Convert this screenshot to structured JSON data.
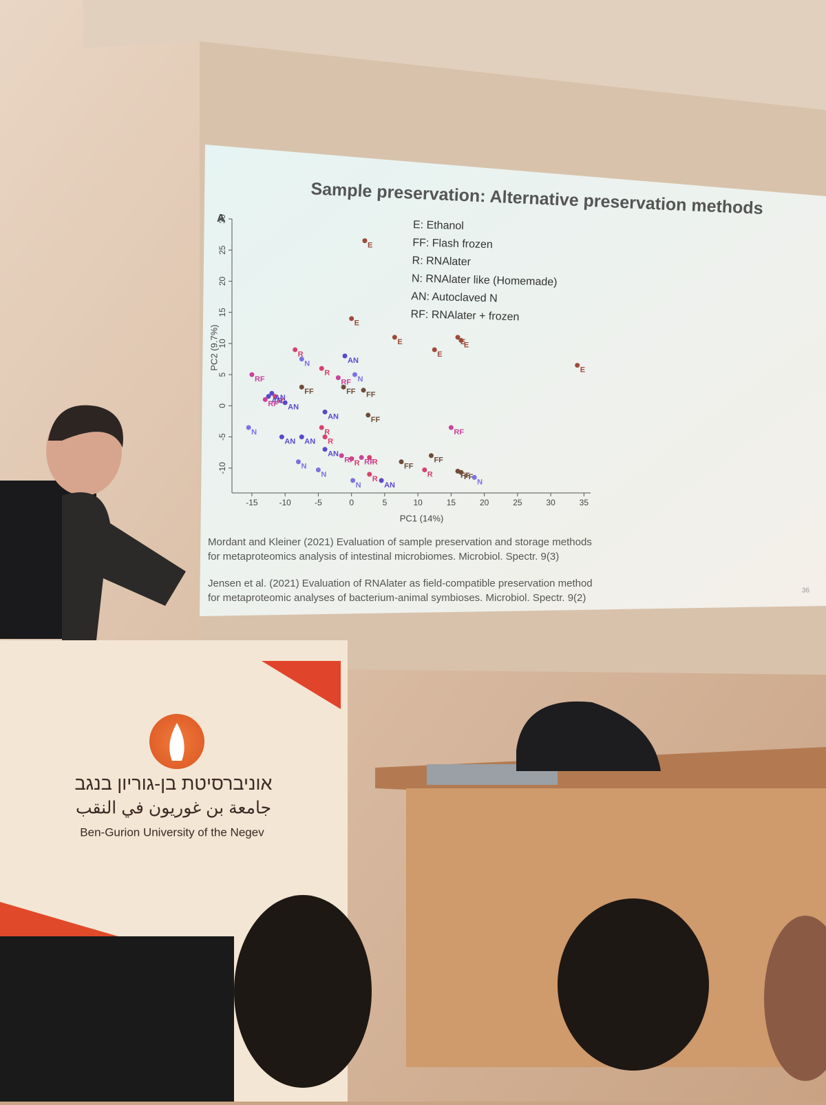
{
  "slide": {
    "title": "Sample preservation: Alternative preservation methods",
    "panel_label": "A",
    "slide_number": "36",
    "citations": [
      [
        "Mordant and Kleiner (2021) Evaluation of sample preservation and storage methods",
        "for metaproteomics analysis of intestinal microbiomes. Microbiol. Spectr. 9(3)"
      ],
      [
        "Jensen et al. (2021) Evaluation of RNAlater as field-compatible preservation method",
        "for metaproteomic analyses of bacterium-animal symbioses. Microbiol. Spectr. 9(2)"
      ]
    ]
  },
  "chart_data": {
    "type": "scatter",
    "x_label": "PC1 (14%)",
    "y_label": "PC2 (9.7%)",
    "xlim": [
      -18,
      36
    ],
    "ylim": [
      -14,
      30
    ],
    "xticks": [
      -15,
      -10,
      -5,
      0,
      5,
      10,
      15,
      20,
      25,
      30,
      35
    ],
    "yticks": [
      -10,
      -5,
      0,
      5,
      10,
      15,
      20,
      25,
      30
    ],
    "series": [
      {
        "name": "E: Ethanol",
        "marker_label": "E",
        "color": "#9c4a3c",
        "x": [
          2,
          0,
          6.5,
          12.5,
          16,
          16.5,
          34
        ],
        "values": [
          26.5,
          14,
          11,
          9,
          11,
          10.5,
          6.5
        ]
      },
      {
        "name": "FF: Flash frozen",
        "marker_label": "FF",
        "color": "#6e4c3a",
        "x": [
          -7.5,
          -1.2,
          1.8,
          2.5,
          7.5,
          12,
          16,
          16.5
        ],
        "values": [
          3,
          3,
          2.5,
          -1.5,
          -9,
          -8,
          -10.5,
          -10.7
        ]
      },
      {
        "name": "R: RNAlater",
        "marker_label": "R",
        "color": "#d8406e",
        "x": [
          -8.5,
          -4.5,
          -4.5,
          -4,
          0,
          2.7,
          2.7,
          11,
          -11.5
        ],
        "values": [
          9,
          6,
          -3.5,
          -5,
          -8.5,
          -8.3,
          -11,
          -10.3,
          1.5
        ]
      },
      {
        "name": "N: RNAlater like (Homemade)",
        "marker_label": "N",
        "color": "#7a72e0",
        "x": [
          -7.5,
          0.5,
          -8,
          -5,
          0.2,
          18.5,
          -15.5
        ],
        "values": [
          7.5,
          5,
          -9,
          -10.3,
          -12,
          -11.5,
          -3.5
        ]
      },
      {
        "name": "AN: Autoclaved N",
        "marker_label": "AN",
        "color": "#5a48cc",
        "x": [
          -1,
          -12.5,
          -12,
          -10,
          -10.5,
          -7.5,
          -4,
          -4,
          4.5
        ],
        "values": [
          8,
          1.5,
          2,
          0.5,
          -5,
          -5,
          -1,
          -7,
          -12
        ]
      },
      {
        "name": "RF: RNAlater + frozen",
        "marker_label": "RF",
        "color": "#c8449a",
        "x": [
          -15,
          -13,
          -2,
          -1.5,
          1.5,
          15
        ],
        "values": [
          5,
          1,
          4.5,
          -8,
          -8.3,
          -3.5
        ]
      }
    ]
  },
  "podium": {
    "hebrew": "אוניברסיטת בן-גוריון בנגב",
    "arabic": "جامعة بن غوريون في النقب",
    "english": "Ben-Gurion University of the Negev"
  }
}
